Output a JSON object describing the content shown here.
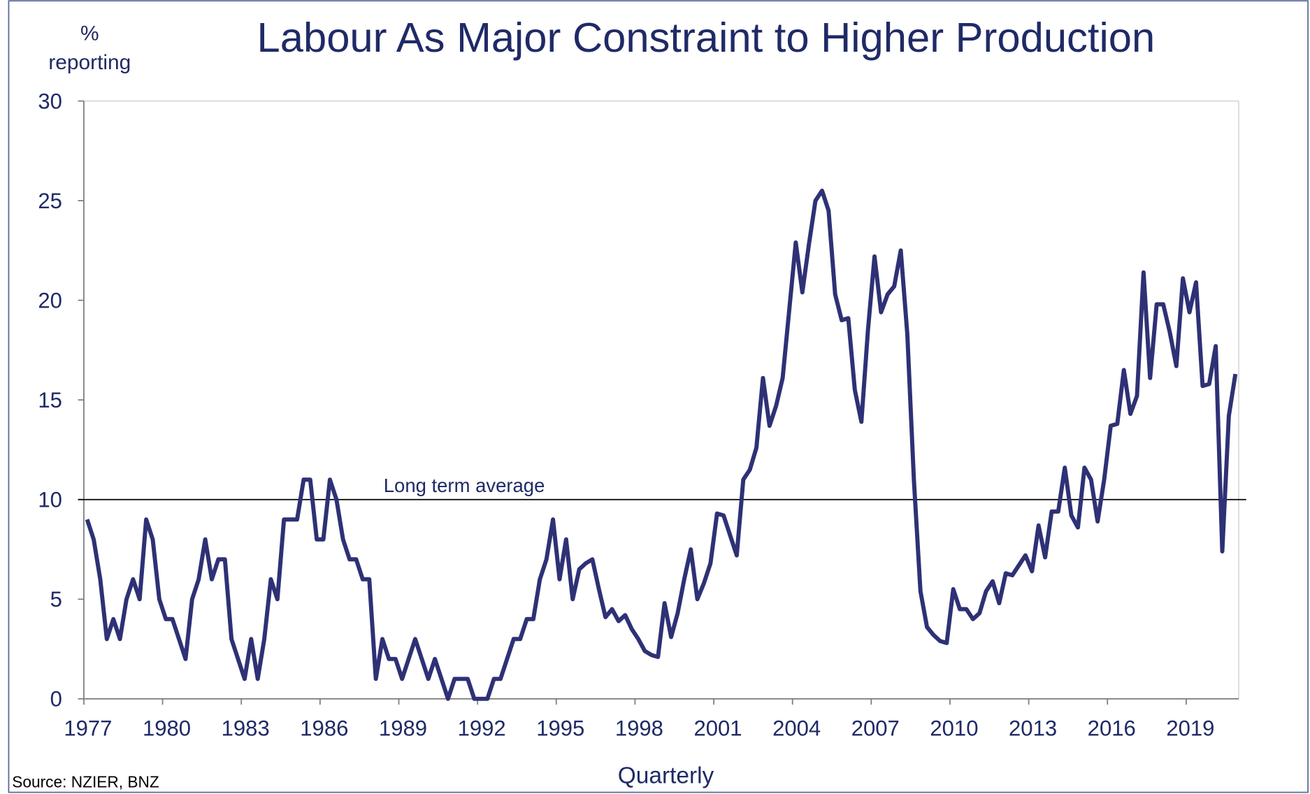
{
  "chart_data": {
    "type": "line",
    "title": "Labour As Major Constraint to Higher Production",
    "ylabel": [
      "%",
      "reporting"
    ],
    "xlabel": "Quarterly",
    "source": "Source: NZIER, BNZ",
    "reference_line": {
      "value": 10,
      "label": "Long term average"
    },
    "xlim": [
      1977,
      2021
    ],
    "xticks": [
      1977,
      1980,
      1983,
      1986,
      1989,
      1992,
      1995,
      1998,
      2001,
      2004,
      2007,
      2010,
      2013,
      2016,
      2019
    ],
    "ylim": [
      0,
      30
    ],
    "yticks": [
      0,
      5,
      10,
      15,
      20,
      25,
      30
    ],
    "grid": false,
    "series": [
      {
        "color": "#2e3175",
        "x": [
          1977.125,
          1977.375,
          1977.625,
          1977.875,
          1978.125,
          1978.375,
          1978.625,
          1978.875,
          1979.125,
          1979.375,
          1979.625,
          1979.875,
          1980.125,
          1980.375,
          1980.625,
          1980.875,
          1981.125,
          1981.375,
          1981.625,
          1981.875,
          1982.125,
          1982.375,
          1982.625,
          1982.875,
          1983.125,
          1983.375,
          1983.625,
          1983.875,
          1984.125,
          1984.375,
          1984.625,
          1984.875,
          1985.125,
          1985.375,
          1985.625,
          1985.875,
          1986.125,
          1986.375,
          1986.625,
          1986.875,
          1987.125,
          1987.375,
          1987.625,
          1987.875,
          1988.125,
          1988.375,
          1988.625,
          1988.875,
          1989.125,
          1989.375,
          1989.625,
          1989.875,
          1990.125,
          1990.375,
          1990.625,
          1990.875,
          1991.125,
          1991.375,
          1991.625,
          1991.875,
          1992.125,
          1992.375,
          1992.625,
          1992.875,
          1993.125,
          1993.375,
          1993.625,
          1993.875,
          1994.125,
          1994.375,
          1994.625,
          1994.875,
          1995.125,
          1995.375,
          1995.625,
          1995.875,
          1996.125,
          1996.375,
          1996.625,
          1996.875,
          1997.125,
          1997.375,
          1997.625,
          1997.875,
          1998.125,
          1998.375,
          1998.625,
          1998.875,
          1999.125,
          1999.375,
          1999.625,
          1999.875,
          2000.125,
          2000.375,
          2000.625,
          2000.875,
          2001.125,
          2001.375,
          2001.625,
          2001.875,
          2002.125,
          2002.375,
          2002.625,
          2002.875,
          2003.125,
          2003.375,
          2003.625,
          2003.875,
          2004.125,
          2004.375,
          2004.625,
          2004.875,
          2005.125,
          2005.375,
          2005.625,
          2005.875,
          2006.125,
          2006.375,
          2006.625,
          2006.875,
          2007.125,
          2007.375,
          2007.625,
          2007.875,
          2008.125,
          2008.375,
          2008.625,
          2008.875,
          2009.125,
          2009.375,
          2009.625,
          2009.875,
          2010.125,
          2010.375,
          2010.625,
          2010.875,
          2011.125,
          2011.375,
          2011.625,
          2011.875,
          2012.125,
          2012.375,
          2012.625,
          2012.875,
          2013.125,
          2013.375,
          2013.625,
          2013.875,
          2014.125,
          2014.375,
          2014.625,
          2014.875,
          2015.125,
          2015.375,
          2015.625,
          2015.875,
          2016.125,
          2016.375,
          2016.625,
          2016.875,
          2017.125,
          2017.375,
          2017.625,
          2017.875,
          2018.125,
          2018.375,
          2018.625,
          2018.875,
          2019.125,
          2019.375,
          2019.625,
          2019.875,
          2020.125,
          2020.375,
          2020.625,
          2020.875
        ],
        "values": [
          9,
          8,
          6,
          3,
          4,
          3,
          5,
          6,
          5,
          9,
          8,
          5,
          4,
          4,
          3,
          2,
          5,
          6,
          8,
          6,
          7,
          7,
          3,
          2,
          1,
          3,
          1,
          3,
          6,
          5,
          9,
          9,
          9,
          11,
          11,
          8,
          8,
          11,
          10,
          8,
          7,
          7,
          6,
          6,
          1,
          3,
          2,
          2,
          1,
          2,
          3,
          2,
          1,
          2,
          1,
          0,
          1,
          1,
          1,
          0,
          0,
          0,
          1,
          1,
          2,
          3,
          3,
          4,
          4,
          6,
          7,
          9,
          6,
          8,
          5,
          6.5,
          6.8,
          7,
          5.5,
          4.1,
          4.5,
          3.9,
          4.2,
          3.5,
          3,
          2.4,
          2.2,
          2.1,
          4.8,
          3.1,
          4.3,
          6,
          7.5,
          5,
          5.8,
          6.8,
          9.3,
          9.2,
          8.2,
          7.2,
          11,
          11.5,
          12.6,
          16.1,
          13.7,
          14.7,
          16.1,
          19.5,
          22.9,
          20.4,
          22.8,
          25,
          25.5,
          24.5,
          20.3,
          19,
          19.1,
          15.5,
          13.9,
          18.5,
          22.2,
          19.4,
          20.3,
          20.7,
          22.5,
          18.3,
          11,
          5.4,
          3.6,
          3.2,
          2.9,
          2.8,
          5.5,
          4.5,
          4.5,
          4,
          4.3,
          5.4,
          5.9,
          4.8,
          6.3,
          6.2,
          6.7,
          7.2,
          6.4,
          8.7,
          7.1,
          9.4,
          9.4,
          11.6,
          9.2,
          8.6,
          11.6,
          11,
          8.9,
          11,
          13.7,
          13.8,
          16.5,
          14.3,
          15.2,
          21.4,
          16.1,
          19.8,
          19.8,
          18.4,
          16.7,
          21.1,
          19.4,
          20.9,
          15.7,
          15.8,
          17.7,
          7.4,
          14.2,
          16.3
        ]
      }
    ]
  }
}
